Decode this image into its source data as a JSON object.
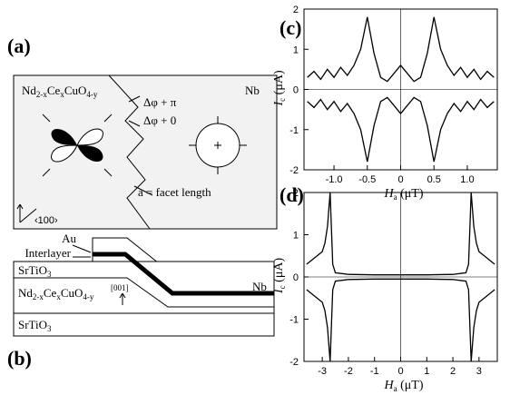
{
  "panels": {
    "a": "(a)",
    "b": "(b)",
    "c": "(c)",
    "d": "(d)"
  },
  "diagram": {
    "ncco": [
      "Nd",
      "2-x",
      "Ce",
      "x",
      "CuO",
      "4-y"
    ],
    "nb": "Nb",
    "dphi_pi": "Δφ + π",
    "dphi_0": "Δφ + 0",
    "facet": "a = facet length",
    "dir100": "‹100›",
    "au": "Au",
    "interlayer": "Interlayer",
    "sto_top": [
      "SrTiO",
      "3"
    ],
    "ncco_layer": [
      "Nd",
      "2-x",
      "Ce",
      "x",
      "CuO",
      "4-y"
    ],
    "dir001": "[001]",
    "nb_layer": "Nb",
    "sto_bottom": [
      "SrTiO",
      "3"
    ]
  },
  "chart_data": [
    {
      "type": "line",
      "ylabel": [
        "I",
        "c",
        " (μA)"
      ],
      "xlabel": [
        "H",
        "a",
        " (μT)"
      ],
      "x": [
        -1.4,
        -1.3,
        -1.2,
        -1.1,
        -1.0,
        -0.9,
        -0.8,
        -0.7,
        -0.6,
        -0.5,
        -0.4,
        -0.3,
        -0.2,
        -0.1,
        0,
        0.1,
        0.2,
        0.3,
        0.4,
        0.5,
        0.6,
        0.7,
        0.8,
        0.9,
        1.0,
        1.1,
        1.2,
        1.3,
        1.4
      ],
      "series": [
        {
          "color": "#000000",
          "values": [
            0.3,
            0.45,
            0.25,
            0.5,
            0.3,
            0.55,
            0.35,
            0.6,
            1.0,
            1.8,
            0.9,
            0.3,
            0.2,
            0.4,
            0.6,
            0.4,
            0.2,
            0.3,
            0.9,
            1.8,
            1.0,
            0.6,
            0.35,
            0.55,
            0.3,
            0.5,
            0.25,
            0.45,
            0.3
          ]
        },
        {
          "color": "#000000",
          "values": [
            -0.3,
            -0.45,
            -0.25,
            -0.5,
            -0.3,
            -0.55,
            -0.35,
            -0.6,
            -1.0,
            -1.8,
            -0.9,
            -0.3,
            -0.2,
            -0.4,
            -0.6,
            -0.4,
            -0.2,
            -0.3,
            -0.9,
            -1.8,
            -1.0,
            -0.6,
            -0.35,
            -0.55,
            -0.3,
            -0.5,
            -0.25,
            -0.45,
            -0.3
          ]
        }
      ],
      "xlim": [
        -1.45,
        1.45
      ],
      "ylim": [
        -2,
        2
      ],
      "xticks": [
        {
          "value": -1,
          "label": "-1.0"
        },
        -0.5,
        0,
        0.5,
        {
          "value": 1,
          "label": "1.0"
        }
      ],
      "yticks": [
        -2,
        -1,
        0,
        1,
        2
      ],
      "grid": false
    },
    {
      "type": "line",
      "ylabel": [
        "I",
        "c",
        " (μA)"
      ],
      "xlabel": [
        "H",
        "a",
        " (μT)"
      ],
      "x": [
        -3.6,
        -3.4,
        -3.2,
        -3.0,
        -2.9,
        -2.8,
        -2.7,
        -2.6,
        -2.5,
        -2,
        -1,
        0,
        1,
        2,
        2.5,
        2.6,
        2.7,
        2.8,
        2.9,
        3.0,
        3.2,
        3.4,
        3.6
      ],
      "series": [
        {
          "color": "#000000",
          "values": [
            0.3,
            0.4,
            0.5,
            0.6,
            0.8,
            1.2,
            2.0,
            0.3,
            0.1,
            0.06,
            0.05,
            0.05,
            0.05,
            0.06,
            0.1,
            0.3,
            2.0,
            1.2,
            0.8,
            0.6,
            0.5,
            0.4,
            0.3
          ]
        },
        {
          "color": "#000000",
          "values": [
            -0.3,
            -0.4,
            -0.5,
            -0.6,
            -0.8,
            -1.2,
            -2.0,
            -0.3,
            -0.1,
            -0.06,
            -0.05,
            -0.05,
            -0.05,
            -0.06,
            -0.1,
            -0.3,
            -2.0,
            -1.2,
            -0.8,
            -0.6,
            -0.5,
            -0.4,
            -0.3
          ]
        }
      ],
      "xlim": [
        -3.7,
        3.7
      ],
      "ylim": [
        -2,
        2
      ],
      "xticks": [
        -3,
        -2,
        -1,
        0,
        1,
        2,
        3
      ],
      "yticks": [
        -2,
        -1,
        0,
        1,
        2
      ],
      "grid": false
    }
  ]
}
